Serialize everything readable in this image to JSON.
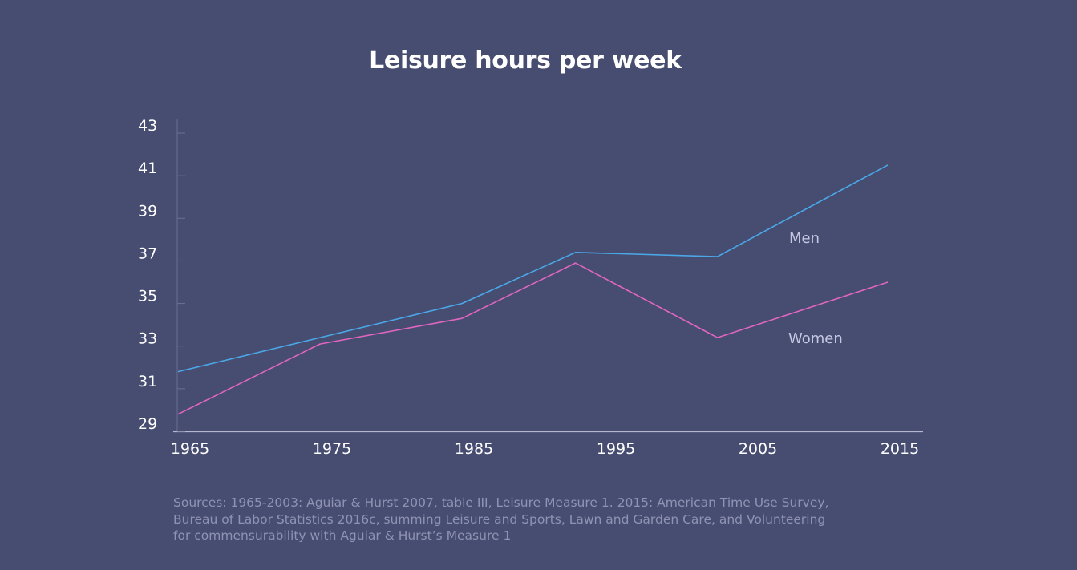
{
  "chart_data": {
    "type": "line",
    "title": "Leisure hours per week",
    "xlabel": "",
    "ylabel": "",
    "x_ticks": [
      "1965",
      "1975",
      "1985",
      "1995",
      "2005",
      "2015"
    ],
    "y_ticks": [
      "29",
      "31",
      "33",
      "35",
      "37",
      "39",
      "41",
      "43"
    ],
    "xlim": [
      1965,
      2015
    ],
    "ylim": [
      29,
      43
    ],
    "grid": false,
    "legend": "inline labels at line ends",
    "series": [
      {
        "name": "Men",
        "color": "#4aa8e8",
        "x": [
          1965,
          1975,
          1985,
          1993,
          2003,
          2015
        ],
        "y": [
          31.8,
          33.4,
          35.0,
          37.4,
          37.2,
          41.5
        ]
      },
      {
        "name": "Women",
        "color": "#e066bf",
        "x": [
          1965,
          1975,
          1985,
          1993,
          2003,
          2015
        ],
        "y": [
          29.8,
          33.1,
          34.3,
          36.9,
          33.4,
          36.0
        ]
      }
    ],
    "label_color": "#c5c8e2"
  },
  "sources": {
    "lines": [
      "Sources: 1965-2003: Aguiar & Hurst 2007, table III, Leisure Measure 1. 2015: American Time Use Survey,",
      "Bureau of Labor Statistics 2016c, summing Leisure and Sports, Lawn and Garden Care, and Volunteering",
      "for commensurability with Aguiar & Hurst’s Measure 1"
    ]
  }
}
